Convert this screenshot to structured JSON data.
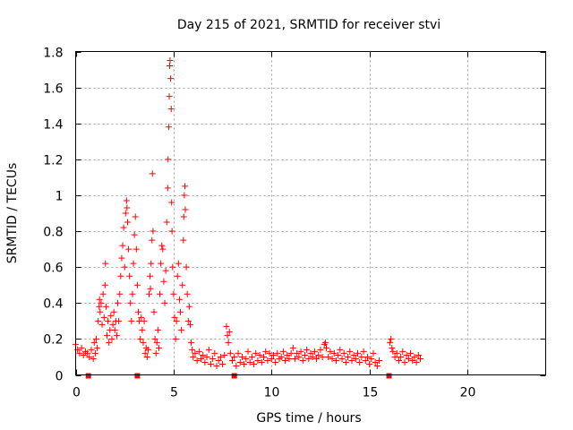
{
  "chart_data": {
    "type": "scatter",
    "title": "Day 215 of 2021, SRMTID for receiver stvi",
    "xlabel": "GPS time / hours",
    "ylabel": "SRMTID / TECUs",
    "xlim": [
      0,
      24
    ],
    "ylim": [
      0,
      1.8
    ],
    "xticks": [
      0,
      5,
      10,
      15,
      20
    ],
    "xtick_labels": [
      "0",
      "5",
      "10",
      "15",
      "20"
    ],
    "yticks": [
      0,
      0.2,
      0.4,
      0.6,
      0.8,
      1,
      1.2,
      1.4,
      1.6,
      1.8
    ],
    "ytick_labels": [
      "0",
      "0.2",
      "0.4",
      "0.6",
      "0.8",
      "1",
      "1.2",
      "1.4",
      "1.6",
      "1.8"
    ],
    "grid": true,
    "marker": "plus",
    "color": "#ff0000",
    "series": [
      {
        "name": "SRMTID",
        "points": [
          [
            0.0,
            0.17
          ],
          [
            0.1,
            0.14
          ],
          [
            0.2,
            0.12
          ],
          [
            0.3,
            0.15
          ],
          [
            0.4,
            0.11
          ],
          [
            0.5,
            0.13
          ],
          [
            0.6,
            0.12
          ],
          [
            0.7,
            0.1
          ],
          [
            0.8,
            0.14
          ],
          [
            0.9,
            0.09
          ],
          [
            0.95,
            0.18
          ],
          [
            1.0,
            0.12
          ],
          [
            1.05,
            0.2
          ],
          [
            1.1,
            0.15
          ],
          [
            1.15,
            0.3
          ],
          [
            1.2,
            0.38
          ],
          [
            1.22,
            0.42
          ],
          [
            1.25,
            0.35
          ],
          [
            1.3,
            0.4
          ],
          [
            1.35,
            0.28
          ],
          [
            1.4,
            0.45
          ],
          [
            1.45,
            0.32
          ],
          [
            1.5,
            0.5
          ],
          [
            1.52,
            0.62
          ],
          [
            1.55,
            0.38
          ],
          [
            1.6,
            0.22
          ],
          [
            1.65,
            0.3
          ],
          [
            1.7,
            0.18
          ],
          [
            1.75,
            0.25
          ],
          [
            1.8,
            0.33
          ],
          [
            1.85,
            0.2
          ],
          [
            1.9,
            0.28
          ],
          [
            1.95,
            0.35
          ],
          [
            2.0,
            0.25
          ],
          [
            2.05,
            0.3
          ],
          [
            2.1,
            0.22
          ],
          [
            2.15,
            0.4
          ],
          [
            2.2,
            0.3
          ],
          [
            2.25,
            0.45
          ],
          [
            2.3,
            0.55
          ],
          [
            2.35,
            0.65
          ],
          [
            2.4,
            0.72
          ],
          [
            2.45,
            0.82
          ],
          [
            2.5,
            0.6
          ],
          [
            2.55,
            0.9
          ],
          [
            2.6,
            0.97
          ],
          [
            2.62,
            0.93
          ],
          [
            2.65,
            0.85
          ],
          [
            2.7,
            0.7
          ],
          [
            2.75,
            0.55
          ],
          [
            2.8,
            0.4
          ],
          [
            2.85,
            0.3
          ],
          [
            2.9,
            0.45
          ],
          [
            2.95,
            0.62
          ],
          [
            3.0,
            0.78
          ],
          [
            3.05,
            0.88
          ],
          [
            3.1,
            0.7
          ],
          [
            3.15,
            0.5
          ],
          [
            3.2,
            0.35
          ],
          [
            3.25,
            0.3
          ],
          [
            3.3,
            0.2
          ],
          [
            3.35,
            0.32
          ],
          [
            3.4,
            0.25
          ],
          [
            3.45,
            0.18
          ],
          [
            3.5,
            0.3
          ],
          [
            3.55,
            0.12
          ],
          [
            3.6,
            0.15
          ],
          [
            3.65,
            0.1
          ],
          [
            3.7,
            0.14
          ],
          [
            3.75,
            0.45
          ],
          [
            3.8,
            0.55
          ],
          [
            3.82,
            0.48
          ],
          [
            3.85,
            0.62
          ],
          [
            3.9,
            0.75
          ],
          [
            3.92,
            1.12
          ],
          [
            3.95,
            0.8
          ],
          [
            4.0,
            0.35
          ],
          [
            4.05,
            0.2
          ],
          [
            4.1,
            0.12
          ],
          [
            4.15,
            0.18
          ],
          [
            4.2,
            0.25
          ],
          [
            4.25,
            0.15
          ],
          [
            4.3,
            0.45
          ],
          [
            4.35,
            0.62
          ],
          [
            4.4,
            0.72
          ],
          [
            4.45,
            0.7
          ],
          [
            4.5,
            0.52
          ],
          [
            4.55,
            0.4
          ],
          [
            4.6,
            0.58
          ],
          [
            4.65,
            0.85
          ],
          [
            4.7,
            1.04
          ],
          [
            4.72,
            1.2
          ],
          [
            4.75,
            1.38
          ],
          [
            4.78,
            1.55
          ],
          [
            4.8,
            1.72
          ],
          [
            4.82,
            1.75
          ],
          [
            4.85,
            1.65
          ],
          [
            4.88,
            1.48
          ],
          [
            4.9,
            0.96
          ],
          [
            4.92,
            0.8
          ],
          [
            4.95,
            0.6
          ],
          [
            5.0,
            0.45
          ],
          [
            5.05,
            0.32
          ],
          [
            5.1,
            0.2
          ],
          [
            5.15,
            0.3
          ],
          [
            5.2,
            0.55
          ],
          [
            5.25,
            0.62
          ],
          [
            5.3,
            0.42
          ],
          [
            5.35,
            0.35
          ],
          [
            5.4,
            0.25
          ],
          [
            5.45,
            0.5
          ],
          [
            5.5,
            0.75
          ],
          [
            5.52,
            0.88
          ],
          [
            5.55,
            1.0
          ],
          [
            5.58,
            1.05
          ],
          [
            5.6,
            0.92
          ],
          [
            5.65,
            0.6
          ],
          [
            5.7,
            0.45
          ],
          [
            5.75,
            0.3
          ],
          [
            5.8,
            0.38
          ],
          [
            5.85,
            0.28
          ],
          [
            5.9,
            0.18
          ],
          [
            5.95,
            0.14
          ],
          [
            6.0,
            0.1
          ],
          [
            6.1,
            0.12
          ],
          [
            6.2,
            0.08
          ],
          [
            6.3,
            0.13
          ],
          [
            6.4,
            0.09
          ],
          [
            6.5,
            0.11
          ],
          [
            6.6,
            0.07
          ],
          [
            6.7,
            0.1
          ],
          [
            6.8,
            0.14
          ],
          [
            6.9,
            0.06
          ],
          [
            7.0,
            0.09
          ],
          [
            7.1,
            0.12
          ],
          [
            7.2,
            0.05
          ],
          [
            7.3,
            0.08
          ],
          [
            7.4,
            0.1
          ],
          [
            7.5,
            0.06
          ],
          [
            7.6,
            0.11
          ],
          [
            7.7,
            0.27
          ],
          [
            7.75,
            0.22
          ],
          [
            7.8,
            0.18
          ],
          [
            7.85,
            0.24
          ],
          [
            7.9,
            0.12
          ],
          [
            8.0,
            0.08
          ],
          [
            8.1,
            0.1
          ],
          [
            8.2,
            0.05
          ],
          [
            8.3,
            0.12
          ],
          [
            8.4,
            0.07
          ],
          [
            8.5,
            0.1
          ],
          [
            8.6,
            0.06
          ],
          [
            8.7,
            0.09
          ],
          [
            8.8,
            0.13
          ],
          [
            8.9,
            0.07
          ],
          [
            9.0,
            0.1
          ],
          [
            9.1,
            0.06
          ],
          [
            9.2,
            0.12
          ],
          [
            9.3,
            0.08
          ],
          [
            9.4,
            0.11
          ],
          [
            9.5,
            0.07
          ],
          [
            9.6,
            0.1
          ],
          [
            9.7,
            0.13
          ],
          [
            9.8,
            0.08
          ],
          [
            9.9,
            0.12
          ],
          [
            10.0,
            0.09
          ],
          [
            10.1,
            0.11
          ],
          [
            10.2,
            0.07
          ],
          [
            10.3,
            0.12
          ],
          [
            10.4,
            0.09
          ],
          [
            10.5,
            0.1
          ],
          [
            10.6,
            0.13
          ],
          [
            10.7,
            0.08
          ],
          [
            10.8,
            0.11
          ],
          [
            10.9,
            0.09
          ],
          [
            11.0,
            0.12
          ],
          [
            11.1,
            0.15
          ],
          [
            11.2,
            0.09
          ],
          [
            11.3,
            0.12
          ],
          [
            11.4,
            0.1
          ],
          [
            11.5,
            0.13
          ],
          [
            11.6,
            0.08
          ],
          [
            11.7,
            0.11
          ],
          [
            11.8,
            0.14
          ],
          [
            11.9,
            0.09
          ],
          [
            12.0,
            0.12
          ],
          [
            12.1,
            0.1
          ],
          [
            12.2,
            0.13
          ],
          [
            12.3,
            0.09
          ],
          [
            12.4,
            0.11
          ],
          [
            12.5,
            0.14
          ],
          [
            12.6,
            0.1
          ],
          [
            12.7,
            0.17
          ],
          [
            12.75,
            0.18
          ],
          [
            12.8,
            0.15
          ],
          [
            12.9,
            0.1
          ],
          [
            13.0,
            0.13
          ],
          [
            13.1,
            0.09
          ],
          [
            13.2,
            0.12
          ],
          [
            13.3,
            0.08
          ],
          [
            13.4,
            0.11
          ],
          [
            13.5,
            0.14
          ],
          [
            13.6,
            0.09
          ],
          [
            13.7,
            0.12
          ],
          [
            13.8,
            0.07
          ],
          [
            13.9,
            0.1
          ],
          [
            14.0,
            0.13
          ],
          [
            14.1,
            0.08
          ],
          [
            14.2,
            0.11
          ],
          [
            14.3,
            0.09
          ],
          [
            14.4,
            0.12
          ],
          [
            14.5,
            0.07
          ],
          [
            14.6,
            0.1
          ],
          [
            14.7,
            0.13
          ],
          [
            14.8,
            0.08
          ],
          [
            14.9,
            0.1
          ],
          [
            15.0,
            0.06
          ],
          [
            15.1,
            0.09
          ],
          [
            15.2,
            0.12
          ],
          [
            15.3,
            0.07
          ],
          [
            15.4,
            0.05
          ],
          [
            15.5,
            0.08
          ],
          [
            16.05,
            0.18
          ],
          [
            16.1,
            0.2
          ],
          [
            16.15,
            0.15
          ],
          [
            16.2,
            0.13
          ],
          [
            16.3,
            0.1
          ],
          [
            16.4,
            0.12
          ],
          [
            16.5,
            0.08
          ],
          [
            16.6,
            0.1
          ],
          [
            16.7,
            0.13
          ],
          [
            16.8,
            0.07
          ],
          [
            16.9,
            0.11
          ],
          [
            17.0,
            0.09
          ],
          [
            17.1,
            0.12
          ],
          [
            17.2,
            0.08
          ],
          [
            17.3,
            0.1
          ],
          [
            17.4,
            0.07
          ],
          [
            17.5,
            0.11
          ],
          [
            17.6,
            0.09
          ]
        ]
      }
    ],
    "gap_markers_x": [
      0.65,
      3.15,
      8.1,
      16.0
    ]
  }
}
